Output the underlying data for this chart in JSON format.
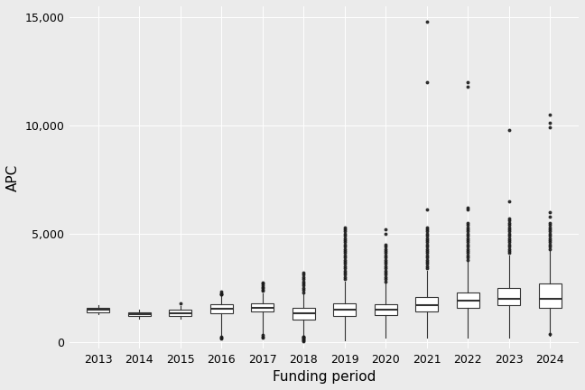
{
  "years": [
    2013,
    2014,
    2015,
    2016,
    2017,
    2018,
    2019,
    2020,
    2021,
    2022,
    2023,
    2024
  ],
  "xlabel": "Funding period",
  "ylabel": "APC",
  "ylim": [
    -300,
    15500
  ],
  "yticks": [
    0,
    5000,
    10000,
    15000
  ],
  "background_color": "#ebebeb",
  "grid_color": "#ffffff",
  "box_color": "#333333",
  "box_fill": "#ffffff",
  "whisker_color": "#333333",
  "median_color": "#333333",
  "flier_color": "#1a1a1a",
  "boxes": {
    "2013": {
      "q1": 1380,
      "median": 1490,
      "q3": 1590,
      "whislo": 1280,
      "whishi": 1700,
      "fliers": []
    },
    "2014": {
      "q1": 1180,
      "median": 1270,
      "q3": 1370,
      "whislo": 1080,
      "whishi": 1470,
      "fliers": []
    },
    "2015": {
      "q1": 1210,
      "median": 1340,
      "q3": 1490,
      "whislo": 1060,
      "whishi": 1640,
      "fliers": [
        1780
      ]
    },
    "2016": {
      "q1": 1340,
      "median": 1540,
      "q3": 1740,
      "whislo": 340,
      "whishi": 2100,
      "fliers": [
        2200,
        2250,
        2180,
        2320,
        150,
        200,
        250
      ]
    },
    "2017": {
      "q1": 1390,
      "median": 1590,
      "q3": 1790,
      "whislo": 350,
      "whishi": 2230,
      "fliers": [
        2350,
        2420,
        2480,
        2550,
        2620,
        2680,
        2750,
        320,
        250,
        200
      ]
    },
    "2018": {
      "q1": 1040,
      "median": 1340,
      "q3": 1590,
      "whislo": 140,
      "whishi": 2180,
      "fliers": [
        2300,
        2400,
        2500,
        2600,
        2700,
        2800,
        2900,
        3000,
        3100,
        3200,
        100,
        80,
        50,
        160,
        200,
        220,
        250
      ]
    },
    "2019": {
      "q1": 1190,
      "median": 1490,
      "q3": 1790,
      "whislo": 90,
      "whishi": 2780,
      "fliers": [
        2900,
        3000,
        3100,
        3200,
        3300,
        3400,
        3500,
        3600,
        3700,
        3800,
        3900,
        4000,
        4100,
        4200,
        4300,
        4400,
        4500,
        4600,
        4700,
        4800,
        4900,
        5000,
        5100,
        5200,
        5300
      ]
    },
    "2020": {
      "q1": 1240,
      "median": 1490,
      "q3": 1740,
      "whislo": 190,
      "whishi": 2680,
      "fliers": [
        2800,
        2900,
        3000,
        3100,
        3200,
        3300,
        3400,
        3500,
        3600,
        3700,
        3800,
        3900,
        4000,
        4100,
        4200,
        4300,
        4400,
        4500,
        5000,
        5200
      ]
    },
    "2021": {
      "q1": 1390,
      "median": 1690,
      "q3": 2090,
      "whislo": 190,
      "whishi": 3280,
      "fliers": [
        3400,
        3500,
        3600,
        3700,
        3800,
        3900,
        4000,
        4100,
        4200,
        4300,
        4400,
        4500,
        4600,
        4700,
        4800,
        4900,
        5000,
        5100,
        5200,
        5300,
        6100,
        12000,
        14800
      ]
    },
    "2022": {
      "q1": 1590,
      "median": 1890,
      "q3": 2290,
      "whislo": 190,
      "whishi": 3680,
      "fliers": [
        3800,
        3900,
        4000,
        4100,
        4200,
        4300,
        4400,
        4500,
        4600,
        4700,
        4800,
        4900,
        5000,
        5100,
        5200,
        5300,
        5400,
        5500,
        6100,
        6200,
        11800,
        12000
      ]
    },
    "2023": {
      "q1": 1690,
      "median": 1990,
      "q3": 2490,
      "whislo": 190,
      "whishi": 3980,
      "fliers": [
        4100,
        4200,
        4300,
        4400,
        4500,
        4600,
        4700,
        4800,
        4900,
        5000,
        5100,
        5200,
        5300,
        5400,
        5500,
        5600,
        5700,
        6500,
        9800
      ]
    },
    "2024": {
      "q1": 1590,
      "median": 1990,
      "q3": 2690,
      "whislo": 290,
      "whishi": 4180,
      "fliers": [
        4300,
        4400,
        4500,
        4600,
        4700,
        4800,
        4900,
        5000,
        5100,
        5200,
        5300,
        5400,
        5500,
        5800,
        6000,
        9900,
        10100,
        10500,
        350
      ]
    }
  },
  "figsize": [
    6.48,
    4.32
  ],
  "dpi": 100,
  "tick_fontsize": 9,
  "axis_fontsize": 11
}
